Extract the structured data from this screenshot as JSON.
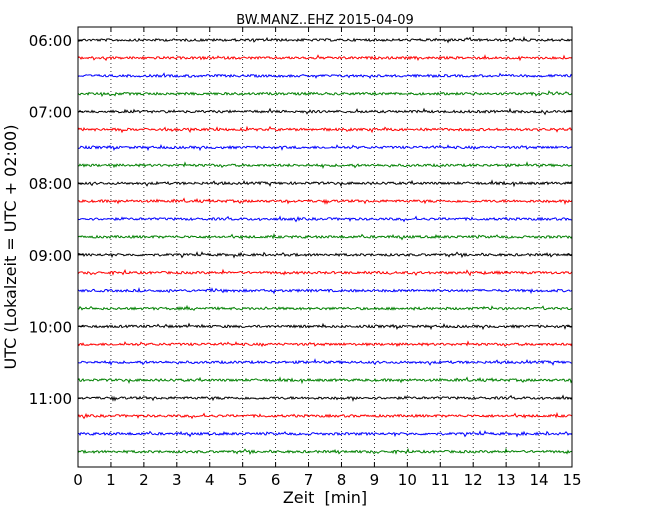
{
  "chart_data": {
    "type": "line",
    "title": "BW.MANZ..EHZ 2015-04-09",
    "xlabel": "Zeit  [min]",
    "ylabel": "UTC (Lokalzeit = UTC + 02:00)",
    "xlim": [
      0,
      15
    ],
    "x_ticks": [
      "0",
      "1",
      "2",
      "3",
      "4",
      "5",
      "6",
      "7",
      "8",
      "9",
      "10",
      "11",
      "12",
      "13",
      "14",
      "15"
    ],
    "y_ticks": [
      "06:00",
      "07:00",
      "08:00",
      "09:00",
      "10:00",
      "11:00"
    ],
    "grid": "vertical dotted",
    "trace_colors": [
      "#000000",
      "#ff0000",
      "#0000ff",
      "#008000"
    ],
    "series": [
      {
        "start": "06:00"
      },
      {
        "start": "06:15"
      },
      {
        "start": "06:30"
      },
      {
        "start": "06:45"
      },
      {
        "start": "07:00"
      },
      {
        "start": "07:15"
      },
      {
        "start": "07:30"
      },
      {
        "start": "07:45"
      },
      {
        "start": "08:00"
      },
      {
        "start": "08:15"
      },
      {
        "start": "08:30"
      },
      {
        "start": "08:45"
      },
      {
        "start": "09:00"
      },
      {
        "start": "09:15"
      },
      {
        "start": "09:30"
      },
      {
        "start": "09:45"
      },
      {
        "start": "10:00"
      },
      {
        "start": "10:15"
      },
      {
        "start": "10:30"
      },
      {
        "start": "10:45"
      },
      {
        "start": "11:00"
      },
      {
        "start": "11:15"
      },
      {
        "start": "11:30"
      },
      {
        "start": "11:45"
      }
    ]
  }
}
